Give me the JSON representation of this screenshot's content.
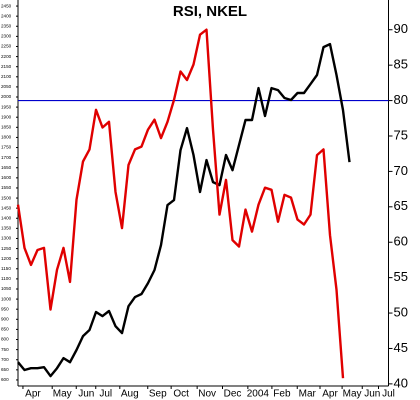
{
  "chart_data": {
    "type": "line",
    "title": "RSI, NKEL",
    "x": [
      0,
      1,
      2,
      3,
      4,
      5,
      6,
      7,
      8,
      9,
      10,
      11,
      12,
      13,
      14,
      15,
      16,
      17,
      18,
      19,
      20,
      21,
      22,
      23,
      24,
      25,
      26,
      27,
      28,
      29,
      30,
      31,
      32,
      33,
      34,
      35,
      36,
      37,
      38,
      39,
      40,
      41,
      42,
      43,
      44,
      45,
      46,
      47,
      48,
      49,
      50,
      51
    ],
    "xlim": [
      0,
      57
    ],
    "xticks": [
      {
        "value": 2.3,
        "label": "Apr"
      },
      {
        "value": 6.8,
        "label": "May"
      },
      {
        "value": 10.5,
        "label": "Jun"
      },
      {
        "value": 13.5,
        "label": "Jul"
      },
      {
        "value": 17.2,
        "label": "Aug"
      },
      {
        "value": 21.5,
        "label": "Sep"
      },
      {
        "value": 25.1,
        "label": "Oct"
      },
      {
        "value": 29.1,
        "label": "Nov"
      },
      {
        "value": 33,
        "label": "Dec"
      },
      {
        "value": 36.9,
        "label": "2004"
      },
      {
        "value": 40.6,
        "label": "Feb"
      },
      {
        "value": 44.5,
        "label": "Mar"
      },
      {
        "value": 48,
        "label": "Apr"
      },
      {
        "value": 51.4,
        "label": "May"
      },
      {
        "value": 54.5,
        "label": "Jun"
      },
      {
        "value": 57,
        "label": "Jul"
      }
    ],
    "ylim": [
      570,
      2480
    ],
    "yticks": [
      600,
      650,
      700,
      750,
      800,
      850,
      900,
      950,
      1000,
      1050,
      1100,
      1150,
      1200,
      1250,
      1300,
      1350,
      1400,
      1450,
      1500,
      1550,
      1600,
      1650,
      1700,
      1750,
      1800,
      1850,
      1900,
      1950,
      2000,
      2050,
      2100,
      2150,
      2200,
      2250,
      2300,
      2350,
      2400,
      2450
    ],
    "y2lim": [
      39.7,
      94.2
    ],
    "y2ticks": [
      40,
      45,
      50,
      55,
      60,
      65,
      70,
      75,
      80,
      85,
      90
    ],
    "reference_line": {
      "value": 80,
      "axis": "y2",
      "color": "#0000cc"
    },
    "series": [
      {
        "color": "#000000",
        "values": [
          688,
          649,
          658,
          658,
          663,
          619,
          658,
          708,
          688,
          748,
          817,
          847,
          936,
          916,
          941,
          866,
          832,
          965,
          1010,
          1025,
          1079,
          1144,
          1267,
          1465,
          1490,
          1737,
          1846,
          1713,
          1530,
          1688,
          1579,
          1564,
          1713,
          1638,
          1762,
          1886,
          1886,
          2044,
          1906,
          2044,
          2034,
          1995,
          1985,
          2020,
          2020,
          2064,
          2109,
          2247,
          2262,
          2109,
          1935,
          1678
        ]
      },
      {
        "color": "#e00000",
        "axis": "y2",
        "values": [
          65.3,
          59.2,
          56.8,
          58.9,
          59.2,
          50.5,
          56.1,
          59.2,
          54.4,
          66.0,
          71.4,
          73.1,
          78.7,
          76.2,
          77.0,
          67.1,
          62.0,
          70.9,
          73.1,
          73.5,
          75.9,
          77.3,
          74.7,
          77.0,
          80.1,
          84.1,
          82.9,
          85.1,
          89.3,
          90.0,
          75.9,
          63.9,
          68.8,
          60.3,
          59.4,
          64.6,
          61.5,
          65.3,
          67.7,
          67.4,
          62.9,
          66.7,
          66.3,
          63.2,
          62.5,
          63.9,
          72.3,
          73.1,
          61.0,
          53.3,
          40.8,
          null
        ]
      }
    ]
  }
}
